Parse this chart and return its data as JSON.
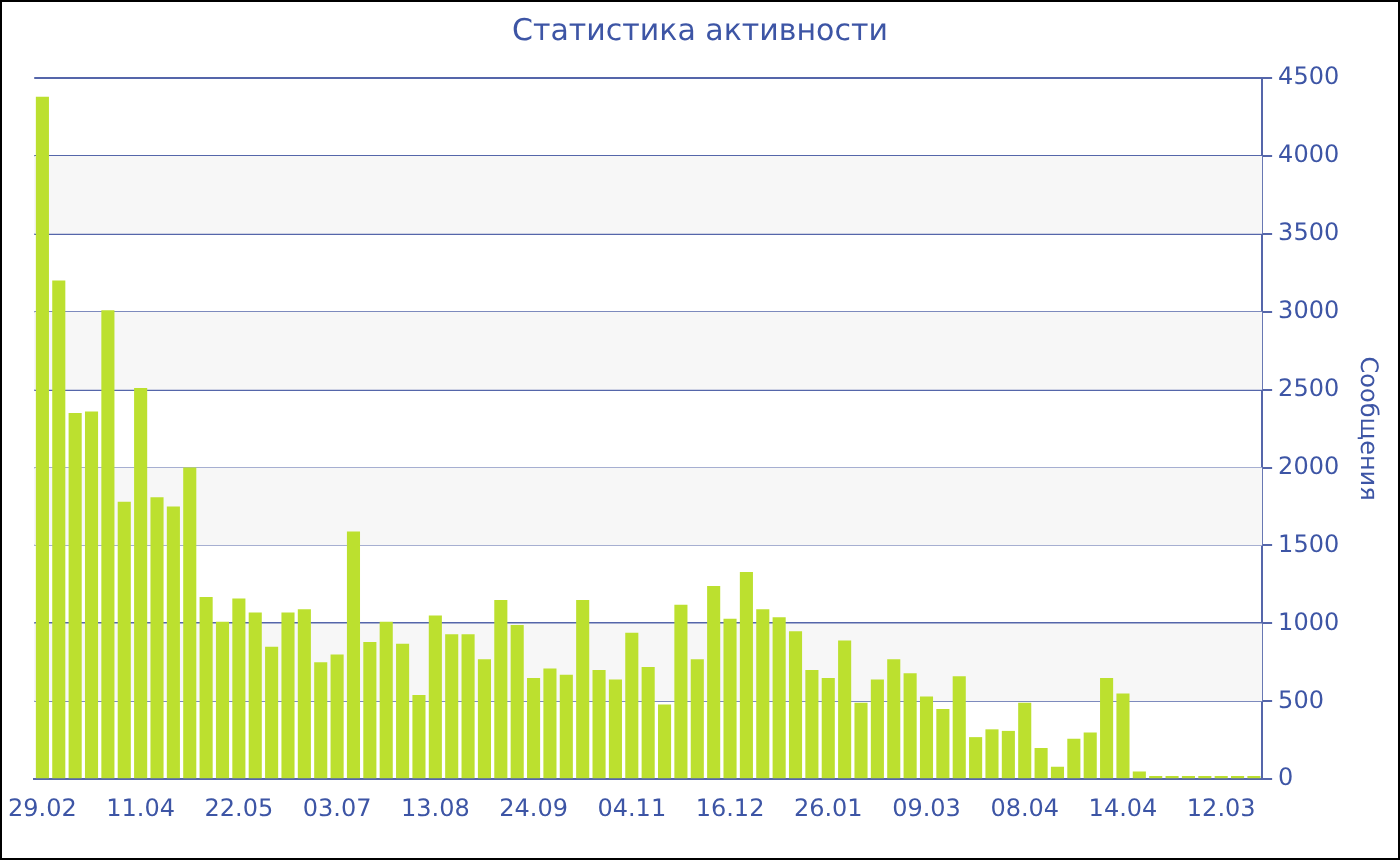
{
  "chart_data": {
    "type": "bar",
    "title": "Статистика активности",
    "ylabel": "Сообщения",
    "color": "#bce02f",
    "categories": [
      "29.02",
      null,
      null,
      null,
      null,
      null,
      "11.04",
      null,
      null,
      null,
      null,
      null,
      "22.05",
      null,
      null,
      null,
      null,
      null,
      "03.07",
      null,
      null,
      null,
      null,
      null,
      "13.08",
      null,
      null,
      null,
      null,
      null,
      "24.09",
      null,
      null,
      null,
      null,
      null,
      "04.11",
      null,
      null,
      null,
      null,
      null,
      "16.12",
      null,
      null,
      null,
      null,
      null,
      "26.01",
      null,
      null,
      null,
      null,
      null,
      "09.03",
      null,
      null,
      null,
      null,
      null,
      "08.04",
      null,
      null,
      null,
      null,
      null,
      "14.04",
      null,
      null,
      null,
      null,
      null,
      "12.03",
      null,
      null
    ],
    "values": [
      4380,
      3200,
      2350,
      2360,
      3010,
      1780,
      2510,
      1810,
      1750,
      2000,
      1170,
      1010,
      1160,
      1070,
      850,
      1070,
      1090,
      750,
      800,
      1590,
      880,
      1010,
      870,
      540,
      1050,
      930,
      930,
      770,
      1150,
      990,
      650,
      710,
      670,
      1150,
      700,
      640,
      940,
      720,
      480,
      1120,
      770,
      1240,
      1030,
      1330,
      1090,
      1040,
      950,
      700,
      650,
      890,
      490,
      640,
      770,
      680,
      530,
      450,
      660,
      270,
      320,
      310,
      490,
      200,
      80,
      260,
      300,
      650,
      550,
      50,
      20,
      20,
      20,
      20,
      20,
      20,
      20
    ],
    "ylim": [
      0,
      4500
    ],
    "yticks": [
      0,
      500,
      1000,
      1500,
      2000,
      2500,
      3000,
      3500,
      4000,
      4500
    ],
    "grid": "y",
    "legend": false
  }
}
